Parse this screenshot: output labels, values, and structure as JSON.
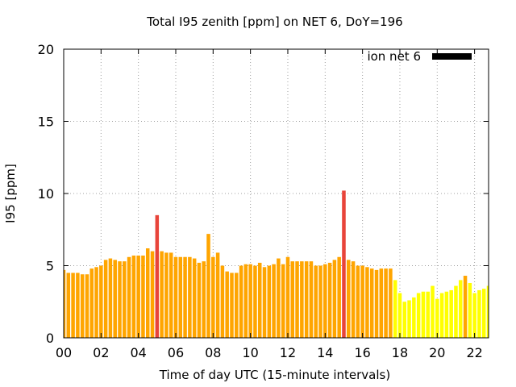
{
  "chart_data": {
    "type": "bar",
    "title": "Total I95 zenith [ppm] on NET 6, DoY=196",
    "xlabel": "Time of day UTC (15-minute intervals)",
    "ylabel": "I95 [ppm]",
    "ylim": [
      0,
      20
    ],
    "xlim": [
      0,
      22.75
    ],
    "yticks": [
      0,
      5,
      10,
      15,
      20
    ],
    "xticks": [
      "00",
      "02",
      "04",
      "06",
      "08",
      "10",
      "12",
      "14",
      "16",
      "18",
      "20",
      "22"
    ],
    "grid": true,
    "legend": {
      "label": "ion net 6",
      "color": "#000000",
      "position": "top-right"
    },
    "colors": {
      "orange": "#ffa500",
      "yellow": "#ffff00",
      "red": "#e8443a"
    },
    "series": [
      {
        "interval_hours": 0.25,
        "values": [
          4.7,
          4.5,
          4.5,
          4.5,
          4.4,
          4.4,
          4.8,
          4.9,
          5.0,
          5.4,
          5.5,
          5.4,
          5.3,
          5.3,
          5.6,
          5.7,
          5.7,
          5.7,
          6.2,
          6.0,
          8.5,
          6.0,
          5.9,
          5.9,
          5.6,
          5.6,
          5.6,
          5.6,
          5.5,
          5.2,
          5.3,
          7.2,
          5.6,
          5.9,
          5.0,
          4.6,
          4.5,
          4.5,
          5.0,
          5.1,
          5.1,
          5.0,
          5.2,
          4.9,
          5.0,
          5.1,
          5.5,
          5.1,
          5.6,
          5.3,
          5.3,
          5.3,
          5.3,
          5.3,
          5.0,
          5.0,
          5.1,
          5.2,
          5.4,
          5.6,
          10.2,
          5.4,
          5.3,
          5.0,
          5.0,
          4.9,
          4.8,
          4.7,
          4.8,
          4.8,
          4.8,
          4.0,
          3.1,
          2.5,
          2.6,
          2.8,
          3.1,
          3.2,
          3.2,
          3.6,
          2.7,
          3.1,
          3.2,
          3.3,
          3.6,
          4.0,
          4.3,
          3.8,
          3.1,
          3.3,
          3.4,
          3.6
        ],
        "value_colors": [
          "orange",
          "orange",
          "orange",
          "orange",
          "orange",
          "orange",
          "orange",
          "orange",
          "orange",
          "orange",
          "orange",
          "orange",
          "orange",
          "orange",
          "orange",
          "orange",
          "orange",
          "orange",
          "orange",
          "orange",
          "red",
          "orange",
          "orange",
          "orange",
          "orange",
          "orange",
          "orange",
          "orange",
          "orange",
          "orange",
          "orange",
          "orange",
          "orange",
          "orange",
          "orange",
          "orange",
          "orange",
          "orange",
          "orange",
          "orange",
          "orange",
          "orange",
          "orange",
          "orange",
          "orange",
          "orange",
          "orange",
          "orange",
          "orange",
          "orange",
          "orange",
          "orange",
          "orange",
          "orange",
          "orange",
          "orange",
          "orange",
          "orange",
          "orange",
          "orange",
          "red",
          "orange",
          "orange",
          "orange",
          "orange",
          "orange",
          "orange",
          "orange",
          "orange",
          "orange",
          "orange",
          "yellow",
          "yellow",
          "yellow",
          "yellow",
          "yellow",
          "yellow",
          "yellow",
          "yellow",
          "yellow",
          "yellow",
          "yellow",
          "yellow",
          "yellow",
          "yellow",
          "yellow",
          "orange",
          "yellow",
          "yellow",
          "yellow",
          "yellow",
          "yellow"
        ]
      }
    ]
  }
}
